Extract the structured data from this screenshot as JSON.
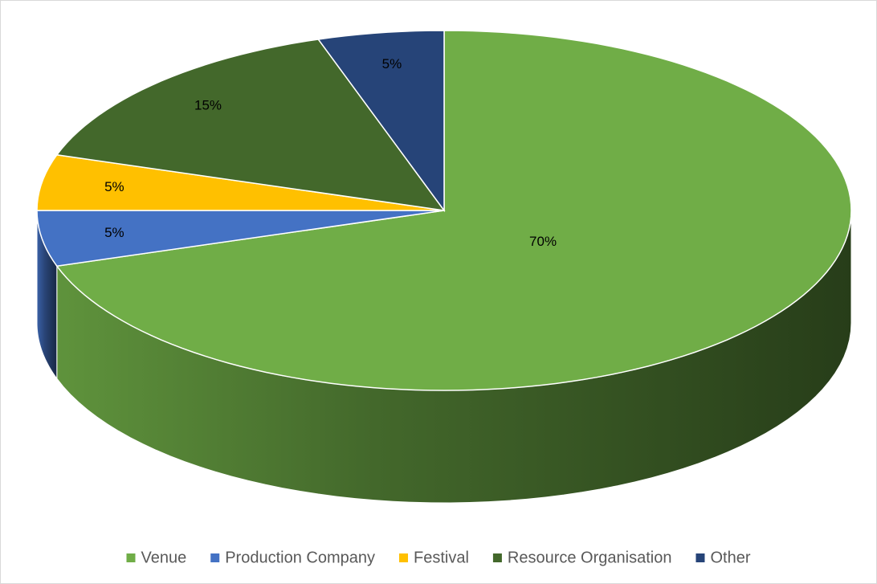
{
  "chart_data": {
    "type": "pie",
    "categories": [
      "Venue",
      "Production Company",
      "Festival",
      "Resource Organisation",
      "Other"
    ],
    "values": [
      70,
      5,
      5,
      15,
      5
    ],
    "value_labels": [
      "70%",
      "5%",
      "5%",
      "15%",
      "5%"
    ],
    "colors": [
      "#70ad47",
      "#4472c4",
      "#ffc000",
      "#43682b",
      "#264478"
    ],
    "legend": "bottom"
  }
}
